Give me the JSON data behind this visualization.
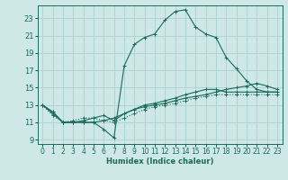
{
  "xlabel": "Humidex (Indice chaleur)",
  "background_color": "#cde8e5",
  "grid_color": "#b0d4d0",
  "line_color": "#1a6b5a",
  "xlim": [
    -0.5,
    23.5
  ],
  "ylim": [
    8.5,
    24.5
  ],
  "xticks": [
    0,
    1,
    2,
    3,
    4,
    5,
    6,
    7,
    8,
    9,
    10,
    11,
    12,
    13,
    14,
    15,
    16,
    17,
    18,
    19,
    20,
    21,
    22,
    23
  ],
  "yticks": [
    9,
    11,
    13,
    15,
    17,
    19,
    21,
    23
  ],
  "series": [
    [
      13.0,
      12.2,
      11.0,
      11.0,
      11.0,
      11.0,
      10.2,
      9.2,
      17.5,
      20.0,
      20.8,
      21.2,
      22.8,
      23.8,
      24.0,
      22.0,
      21.2,
      20.8,
      18.5,
      17.2,
      15.8,
      14.8,
      14.5,
      14.5
    ],
    [
      13.0,
      12.2,
      11.0,
      11.0,
      11.2,
      11.5,
      11.8,
      11.2,
      12.0,
      12.5,
      13.0,
      13.2,
      13.5,
      13.8,
      14.2,
      14.5,
      14.8,
      14.8,
      14.5,
      14.5,
      14.5,
      14.5,
      14.5,
      14.5
    ],
    [
      13.0,
      11.8,
      11.0,
      11.2,
      11.5,
      11.5,
      11.2,
      11.0,
      11.5,
      12.0,
      12.5,
      12.8,
      13.0,
      13.2,
      13.5,
      13.8,
      14.0,
      14.2,
      14.2,
      14.2,
      14.2,
      14.2,
      14.2,
      14.2
    ],
    [
      13.0,
      12.0,
      11.0,
      11.0,
      11.0,
      11.0,
      11.2,
      11.5,
      12.0,
      12.5,
      12.8,
      13.0,
      13.2,
      13.5,
      13.8,
      14.0,
      14.2,
      14.5,
      14.8,
      15.0,
      15.2,
      15.5,
      15.2,
      14.8
    ]
  ],
  "linestyles": [
    "solid",
    "solid",
    "dotted",
    "solid"
  ],
  "xlabel_fontsize": 6.0,
  "tick_fontsize": 5.5,
  "ytick_fontsize": 6.0
}
